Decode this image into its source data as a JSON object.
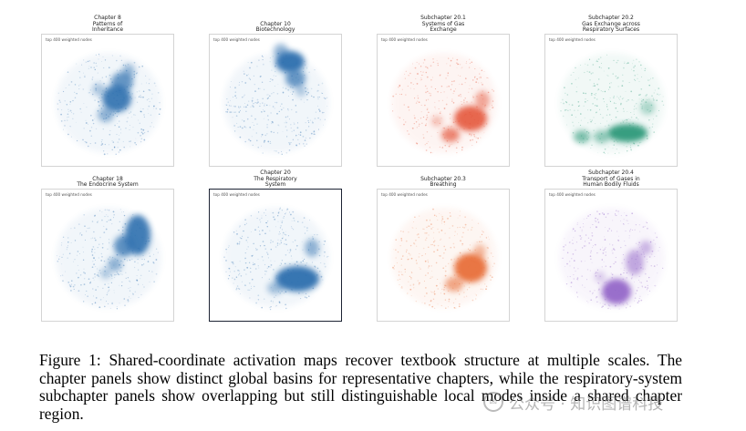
{
  "figure": {
    "panels": [
      {
        "title_lines": [
          "Chapter 8",
          "Patterns of",
          "Inheritance"
        ],
        "label": "top 400 weighted nodes",
        "color": "#2f6faf",
        "selected": false
      },
      {
        "title_lines": [
          "Chapter 10",
          "Biotechnology"
        ],
        "label": "top 400 weighted nodes",
        "color": "#2f6faf",
        "selected": false
      },
      {
        "title_lines": [
          "Subchapter 20.1",
          "Systems of Gas",
          "Exchange"
        ],
        "label": "top 400 weighted nodes",
        "color": "#e5583d",
        "selected": false
      },
      {
        "title_lines": [
          "Subchapter 20.2",
          "Gas Exchange across",
          "Respiratory Surfaces"
        ],
        "label": "top 400 weighted nodes",
        "color": "#2f9a7a",
        "selected": false
      },
      {
        "title_lines": [
          "Chapter 18",
          "The Endocrine System"
        ],
        "label": "top 400 weighted nodes",
        "color": "#2f6faf",
        "selected": false
      },
      {
        "title_lines": [
          "Chapter 20",
          "The Respiratory",
          "System"
        ],
        "label": "top 400 weighted nodes",
        "color": "#2f6faf",
        "selected": true
      },
      {
        "title_lines": [
          "Subchapter 20.3",
          "Breathing"
        ],
        "label": "top 400 weighted nodes",
        "color": "#e8703a",
        "selected": false
      },
      {
        "title_lines": [
          "Subchapter 20.4",
          "Transport of Gases in",
          "Human Bodily Fluids"
        ],
        "label": "top 400 weighted nodes",
        "color": "#9468c9",
        "selected": false
      }
    ],
    "caption": "Figure 1: Shared-coordinate activation maps recover textbook structure at multiple scales. The chapter panels show distinct global basins for representative chapters, while the respiratory-system subchapter panels show overlapping but still distinguishable local modes inside a shared chapter region."
  },
  "watermark": {
    "icon": "wechat-icon",
    "text": "公众号 · 知识图谱科技"
  }
}
